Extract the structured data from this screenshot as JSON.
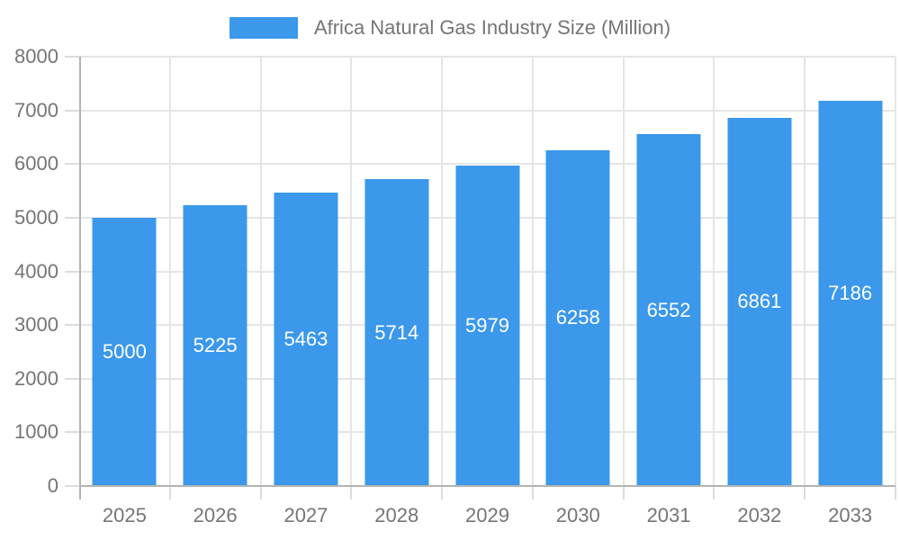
{
  "chart_data": {
    "type": "bar",
    "title": "Africa Natural Gas Industry Size (Million)",
    "categories": [
      "2025",
      "2026",
      "2027",
      "2028",
      "2029",
      "2030",
      "2031",
      "2032",
      "2033"
    ],
    "values": [
      5000,
      5225,
      5463,
      5714,
      5979,
      6258,
      6552,
      6861,
      7186
    ],
    "xlabel": "",
    "ylabel": "",
    "ylim": [
      0,
      8000
    ],
    "ytick_step": 1000,
    "grid": true,
    "legend_position": "top",
    "bar_width_fraction": 0.705
  },
  "colors": {
    "bar": "#3B98EB",
    "bar_value_label": "#FFFFFF",
    "axis_text": "#757575",
    "gridline": "#E5E5E5",
    "axis_line": "#B3B3B3",
    "tick": "#DCDCDC",
    "background": "#FFFFFF"
  }
}
